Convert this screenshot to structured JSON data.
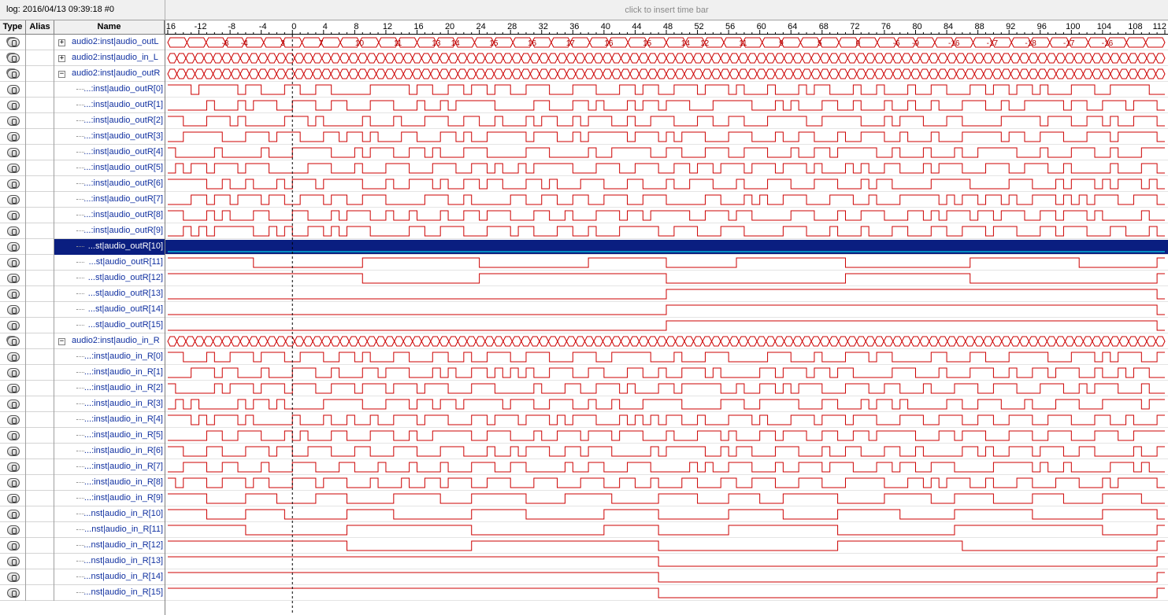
{
  "log_label": "log: 2016/04/13 09:39:18  #0",
  "timebar_hint": "click to insert time bar",
  "columns": {
    "type": "Type",
    "alias": "Alias",
    "name": "Name"
  },
  "colors": {
    "wave": "#cc0000",
    "selected_bg": "#0a1e80",
    "selected_edge": "#00ffff",
    "cursor": "#000000"
  },
  "timeline": {
    "ticks": [
      "-16",
      "-12",
      "-8",
      "-4",
      "0",
      "4",
      "8",
      "12",
      "16",
      "20",
      "24",
      "28",
      "32",
      "36",
      "40",
      "44",
      "48",
      "52",
      "56",
      "60",
      "64",
      "68",
      "72",
      "76",
      "80",
      "84",
      "88",
      "92",
      "96",
      "100",
      "104",
      "108",
      "112"
    ],
    "start": -16,
    "end": 112,
    "cursor_at": 0
  },
  "signals": [
    {
      "name": "audio2:inst|audio_outL",
      "kind": "bus",
      "expander": "+",
      "values": [
        "-8",
        "-4",
        "3",
        "7",
        "10",
        "11",
        "13",
        "14",
        "15",
        "16",
        "17",
        "16",
        "15",
        "14",
        "12",
        "11",
        "9",
        "5",
        "0",
        "-6",
        "-9",
        "-16",
        "-17",
        "-18",
        "-17",
        "-16"
      ]
    },
    {
      "name": "audio2:inst|audio_in_L",
      "kind": "bus",
      "expander": "+",
      "values": []
    },
    {
      "name": "audio2:inst|audio_outR",
      "kind": "bus",
      "expander": "−",
      "values": []
    },
    {
      "name": "...:inst|audio_outR[0]",
      "kind": "bit",
      "seed": 11
    },
    {
      "name": "...:inst|audio_outR[1]",
      "kind": "bit",
      "seed": 12
    },
    {
      "name": "...:inst|audio_outR[2]",
      "kind": "bit",
      "seed": 13
    },
    {
      "name": "...:inst|audio_outR[3]",
      "kind": "bit",
      "seed": 14
    },
    {
      "name": "...:inst|audio_outR[4]",
      "kind": "bit",
      "seed": 15
    },
    {
      "name": "...:inst|audio_outR[5]",
      "kind": "bit",
      "seed": 16
    },
    {
      "name": "...:inst|audio_outR[6]",
      "kind": "bit",
      "seed": 17
    },
    {
      "name": "...:inst|audio_outR[7]",
      "kind": "bit",
      "seed": 18
    },
    {
      "name": "...:inst|audio_outR[8]",
      "kind": "bit",
      "seed": 19
    },
    {
      "name": "...:inst|audio_outR[9]",
      "kind": "bit",
      "seed": 20
    },
    {
      "name": "...st|audio_outR[10]",
      "kind": "bit",
      "selected": true,
      "edges": [
        -16,
        -10,
        -5,
        0,
        9,
        24,
        32,
        38,
        43,
        48,
        52,
        57,
        63,
        71,
        87,
        95,
        101,
        105,
        111
      ]
    },
    {
      "name": "...st|audio_outR[11]",
      "kind": "bit",
      "initial": 1,
      "edges": [
        -16,
        -5,
        9,
        24,
        38,
        48,
        57,
        71,
        87,
        101,
        111
      ]
    },
    {
      "name": "...st|audio_outR[12]",
      "kind": "bit",
      "initial": 1,
      "edges": [
        -16,
        9,
        24,
        48,
        71,
        87,
        111
      ]
    },
    {
      "name": "...st|audio_outR[13]",
      "kind": "bit",
      "initial": 0,
      "edges": [
        -16,
        48,
        111
      ]
    },
    {
      "name": "...st|audio_outR[14]",
      "kind": "bit",
      "initial": 0,
      "edges": [
        -16,
        48,
        111
      ]
    },
    {
      "name": "...st|audio_outR[15]",
      "kind": "bit",
      "initial": 0,
      "edges": [
        -16,
        48,
        111
      ]
    },
    {
      "name": "audio2:inst|audio_in_R",
      "kind": "bus",
      "expander": "−",
      "values": []
    },
    {
      "name": "...:inst|audio_in_R[0]",
      "kind": "bit",
      "seed": 31
    },
    {
      "name": "...:inst|audio_in_R[1]",
      "kind": "bit",
      "seed": 32
    },
    {
      "name": "...:inst|audio_in_R[2]",
      "kind": "bit",
      "seed": 33
    },
    {
      "name": "...:inst|audio_in_R[3]",
      "kind": "bit",
      "seed": 34
    },
    {
      "name": "...:inst|audio_in_R[4]",
      "kind": "bit",
      "seed": 35
    },
    {
      "name": "...:inst|audio_in_R[5]",
      "kind": "bit",
      "seed": 36
    },
    {
      "name": "...:inst|audio_in_R[6]",
      "kind": "bit",
      "seed": 37
    },
    {
      "name": "...:inst|audio_in_R[7]",
      "kind": "bit",
      "seed": 38
    },
    {
      "name": "...:inst|audio_in_R[8]",
      "kind": "bit",
      "seed": 39
    },
    {
      "name": "...:inst|audio_in_R[9]",
      "kind": "bit",
      "initial": 1,
      "edges": [
        -16,
        -11,
        -6,
        -2,
        3,
        7,
        13,
        19,
        23,
        30,
        35,
        41,
        47,
        52,
        56,
        60,
        63,
        70,
        76,
        82,
        85,
        90,
        95,
        99,
        104,
        109
      ]
    },
    {
      "name": "...nst|audio_in_R[10]",
      "kind": "bit",
      "initial": 1,
      "edges": [
        -16,
        -11,
        -6,
        -1,
        7,
        13,
        23,
        30,
        40,
        47,
        56,
        63,
        70,
        78,
        85,
        95,
        104,
        111
      ]
    },
    {
      "name": "...nst|audio_in_R[11]",
      "kind": "bit",
      "initial": 1,
      "edges": [
        -16,
        -6,
        7,
        23,
        40,
        47,
        56,
        70,
        85,
        104,
        111
      ]
    },
    {
      "name": "...nst|audio_in_R[12]",
      "kind": "bit",
      "initial": 1,
      "edges": [
        -16,
        7,
        23,
        47,
        70,
        86,
        111
      ]
    },
    {
      "name": "...nst|audio_in_R[13]",
      "kind": "bit",
      "initial": 1,
      "edges": [
        -16,
        47,
        111
      ]
    },
    {
      "name": "...nst|audio_in_R[14]",
      "kind": "bit",
      "initial": 1,
      "edges": [
        -16,
        47,
        111
      ]
    },
    {
      "name": "...nst|audio_in_R[15]",
      "kind": "bit",
      "initial": 1,
      "edges": [
        -16,
        47,
        111
      ]
    }
  ]
}
